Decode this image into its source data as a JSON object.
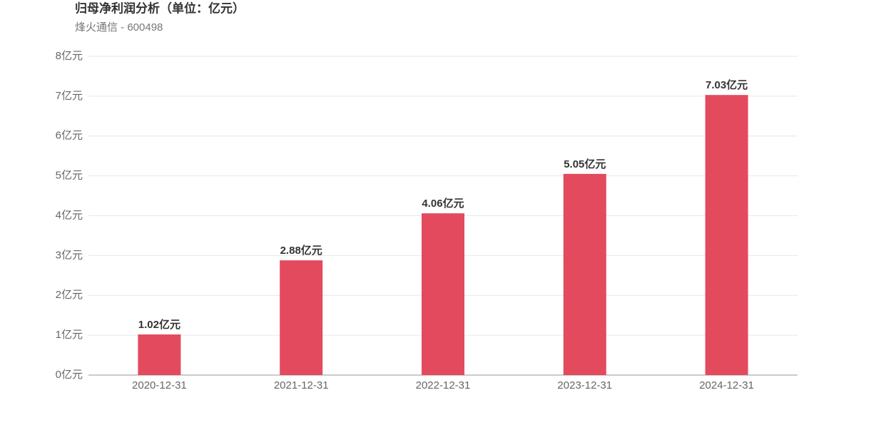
{
  "chart_data": {
    "type": "bar",
    "title": "归母净利润分析（单位：亿元）",
    "subtitle": "烽火通信 - 600498",
    "categories": [
      "2020-12-31",
      "2021-12-31",
      "2022-12-31",
      "2023-12-31",
      "2024-12-31"
    ],
    "values": [
      1.02,
      2.88,
      4.06,
      5.05,
      7.03
    ],
    "value_labels": [
      "1.02亿元",
      "2.88亿元",
      "4.06亿元",
      "5.05亿元",
      "7.03亿元"
    ],
    "color": "#e34a5e",
    "ylim": [
      0,
      8
    ],
    "yticks": [
      {
        "value": 0,
        "label": "0亿元"
      },
      {
        "value": 1,
        "label": "1亿元"
      },
      {
        "value": 2,
        "label": "2亿元"
      },
      {
        "value": 3,
        "label": "3亿元"
      },
      {
        "value": 4,
        "label": "4亿元"
      },
      {
        "value": 5,
        "label": "5亿元"
      },
      {
        "value": 6,
        "label": "6亿元"
      },
      {
        "value": 7,
        "label": "7亿元"
      },
      {
        "value": 8,
        "label": "8亿元"
      }
    ],
    "grid": true
  }
}
